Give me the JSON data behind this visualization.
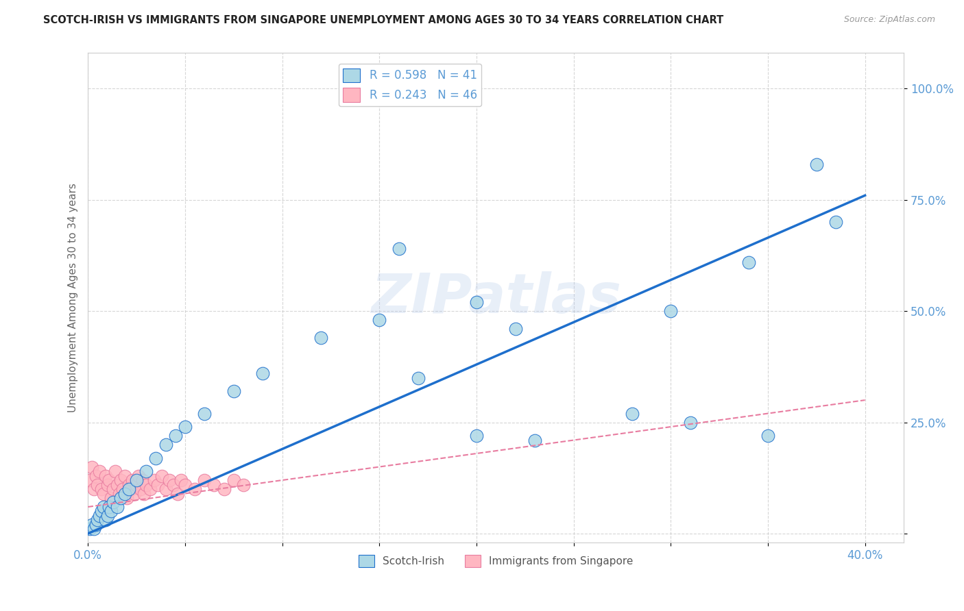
{
  "title": "SCOTCH-IRISH VS IMMIGRANTS FROM SINGAPORE UNEMPLOYMENT AMONG AGES 30 TO 34 YEARS CORRELATION CHART",
  "source": "Source: ZipAtlas.com",
  "ylabel_label": "Unemployment Among Ages 30 to 34 years",
  "xlim": [
    0.0,
    0.42
  ],
  "ylim": [
    -0.02,
    1.08
  ],
  "x_ticks": [
    0.0,
    0.05,
    0.1,
    0.15,
    0.2,
    0.25,
    0.3,
    0.35,
    0.4
  ],
  "x_tick_labels": [
    "0.0%",
    "",
    "",
    "",
    "",
    "",
    "",
    "",
    "40.0%"
  ],
  "y_ticks": [
    0.0,
    0.25,
    0.5,
    0.75,
    1.0
  ],
  "y_tick_labels_right": [
    "",
    "25.0%",
    "50.0%",
    "75.0%",
    "100.0%"
  ],
  "grid_color": "#cccccc",
  "background_color": "#ffffff",
  "scotch_irish_color": "#add8e6",
  "singapore_color": "#ffb6c1",
  "scotch_irish_line_color": "#1e6fcc",
  "singapore_line_color": "#e87ca0",
  "scotch_irish_R": 0.598,
  "scotch_irish_N": 41,
  "singapore_R": 0.243,
  "singapore_N": 46,
  "watermark": "ZIPatlas",
  "tick_color": "#5b9bd5",
  "scotch_irish_x": [
    0.001,
    0.002,
    0.003,
    0.004,
    0.005,
    0.006,
    0.007,
    0.008,
    0.009,
    0.01,
    0.011,
    0.012,
    0.013,
    0.015,
    0.017,
    0.019,
    0.021,
    0.025,
    0.03,
    0.035,
    0.04,
    0.045,
    0.05,
    0.06,
    0.075,
    0.09,
    0.12,
    0.15,
    0.17,
    0.2,
    0.23,
    0.28,
    0.31,
    0.35,
    0.375,
    0.385,
    0.2,
    0.22,
    0.16,
    0.3,
    0.34
  ],
  "scotch_irish_y": [
    0.01,
    0.02,
    0.01,
    0.02,
    0.03,
    0.04,
    0.05,
    0.06,
    0.03,
    0.04,
    0.06,
    0.05,
    0.07,
    0.06,
    0.08,
    0.09,
    0.1,
    0.12,
    0.14,
    0.17,
    0.2,
    0.22,
    0.24,
    0.27,
    0.32,
    0.36,
    0.44,
    0.48,
    0.35,
    0.22,
    0.21,
    0.27,
    0.25,
    0.22,
    0.83,
    0.7,
    0.52,
    0.46,
    0.64,
    0.5,
    0.61
  ],
  "singapore_x": [
    0.001,
    0.002,
    0.003,
    0.004,
    0.005,
    0.006,
    0.007,
    0.008,
    0.009,
    0.01,
    0.011,
    0.012,
    0.013,
    0.014,
    0.015,
    0.016,
    0.017,
    0.018,
    0.019,
    0.02,
    0.021,
    0.022,
    0.023,
    0.024,
    0.025,
    0.026,
    0.027,
    0.028,
    0.029,
    0.03,
    0.032,
    0.034,
    0.036,
    0.038,
    0.04,
    0.042,
    0.044,
    0.046,
    0.048,
    0.05,
    0.055,
    0.06,
    0.065,
    0.07,
    0.075,
    0.08
  ],
  "singapore_y": [
    0.12,
    0.15,
    0.1,
    0.13,
    0.11,
    0.14,
    0.1,
    0.09,
    0.13,
    0.11,
    0.12,
    0.08,
    0.1,
    0.14,
    0.11,
    0.09,
    0.12,
    0.1,
    0.13,
    0.08,
    0.11,
    0.1,
    0.12,
    0.09,
    0.11,
    0.13,
    0.1,
    0.12,
    0.09,
    0.11,
    0.1,
    0.12,
    0.11,
    0.13,
    0.1,
    0.12,
    0.11,
    0.09,
    0.12,
    0.11,
    0.1,
    0.12,
    0.11,
    0.1,
    0.12,
    0.11
  ]
}
